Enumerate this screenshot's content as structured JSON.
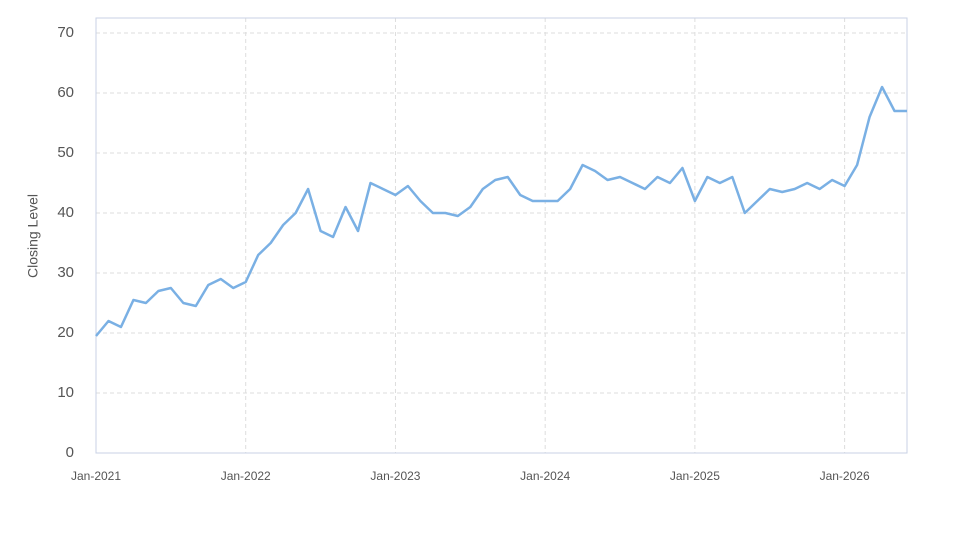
{
  "chart_data": {
    "type": "line",
    "y_label": "Closing Level",
    "x": [
      "2021-01",
      "2021-02",
      "2021-03",
      "2021-04",
      "2021-05",
      "2021-06",
      "2021-07",
      "2021-08",
      "2021-09",
      "2021-10",
      "2021-11",
      "2021-12",
      "2022-01",
      "2022-02",
      "2022-03",
      "2022-04",
      "2022-05",
      "2022-06",
      "2022-07",
      "2022-08",
      "2022-09",
      "2022-10",
      "2022-11",
      "2022-12",
      "2023-01",
      "2023-02",
      "2023-03",
      "2023-04",
      "2023-05",
      "2023-06",
      "2023-07",
      "2023-08",
      "2023-09",
      "2023-10",
      "2023-11",
      "2023-12",
      "2024-01",
      "2024-02",
      "2024-03",
      "2024-04",
      "2024-05",
      "2024-06",
      "2024-07",
      "2024-08",
      "2024-09",
      "2024-10",
      "2024-11",
      "2024-12",
      "2025-01",
      "2025-02",
      "2025-03",
      "2025-04",
      "2025-05",
      "2025-06",
      "2025-07",
      "2025-08",
      "2025-09",
      "2025-10",
      "2025-11",
      "2025-12",
      "2026-01",
      "2026-02",
      "2026-03",
      "2026-04",
      "2026-05",
      "2026-06"
    ],
    "series": [
      {
        "color": "#7ab0e4",
        "values": [
          19.5,
          22,
          21,
          25.5,
          25,
          27,
          27.5,
          25,
          24.5,
          28,
          29,
          27.5,
          28.5,
          33,
          35,
          38,
          40,
          44,
          37,
          36,
          41,
          37,
          45,
          44,
          43,
          44.5,
          42,
          40,
          40,
          39.5,
          41,
          44,
          45.5,
          46,
          43,
          42,
          42,
          42,
          44,
          48,
          47,
          45.5,
          46,
          45,
          44,
          46,
          45,
          47.5,
          42,
          46,
          45,
          46,
          40,
          42,
          44,
          43.5,
          44,
          45,
          44,
          45.5,
          44.5,
          48,
          56,
          61,
          57,
          57
        ]
      }
    ],
    "xlim": [
      "2021-01",
      "2026-06"
    ],
    "xticks": [
      {
        "value": "2021-01",
        "label": "Jan-2021"
      },
      {
        "value": "2022-01",
        "label": "Jan-2022"
      },
      {
        "value": "2023-01",
        "label": "Jan-2023"
      },
      {
        "value": "2024-01",
        "label": "Jan-2024"
      },
      {
        "value": "2025-01",
        "label": "Jan-2025"
      },
      {
        "value": "2026-01",
        "label": "Jan-2026"
      }
    ],
    "ylim": [
      0,
      72.5
    ],
    "yticks": [
      0,
      10,
      20,
      30,
      40,
      50,
      60,
      70
    ],
    "grid": true
  }
}
